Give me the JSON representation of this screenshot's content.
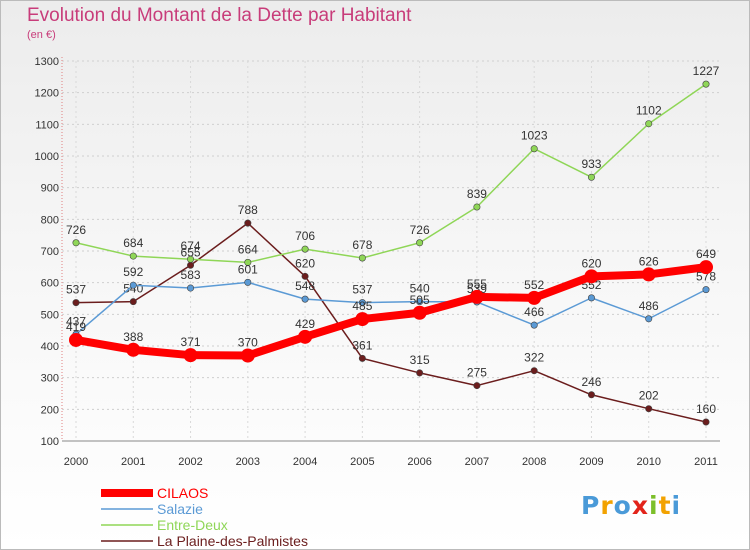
{
  "chart_data": {
    "type": "line",
    "title": "Evolution du Montant de la Dette par Habitant",
    "subtitle": "(en €)",
    "xlabel": "",
    "ylabel": "",
    "ylim": [
      100,
      1300
    ],
    "yticks": [
      100,
      200,
      300,
      400,
      500,
      600,
      700,
      800,
      900,
      1000,
      1100,
      1200,
      1300
    ],
    "grid": true,
    "legend_position": "bottom-left",
    "categories": [
      "2000",
      "2001",
      "2002",
      "2003",
      "2004",
      "2005",
      "2006",
      "2007",
      "2008",
      "2009",
      "2010",
      "2011"
    ],
    "series": [
      {
        "name": "CILAOS",
        "color": "#ff0000",
        "values": [
          419,
          388,
          371,
          370,
          429,
          485,
          505,
          555,
          552,
          620,
          626,
          649
        ]
      },
      {
        "name": "Salazie",
        "color": "#5b9ad5",
        "values": [
          437,
          592,
          583,
          601,
          548,
          537,
          540,
          539,
          466,
          552,
          486,
          578
        ]
      },
      {
        "name": "Entre-Deux",
        "color": "#8fd657",
        "values": [
          726,
          684,
          674,
          664,
          706,
          678,
          726,
          839,
          1023,
          933,
          1102,
          1227
        ]
      },
      {
        "name": "La Plaine-des-Palmistes",
        "color": "#6b1d1d",
        "values": [
          537,
          540,
          655,
          788,
          620,
          361,
          315,
          275,
          322,
          246,
          202,
          160
        ]
      }
    ]
  },
  "logo": {
    "text": "Proxiti",
    "colors": [
      "#4a9ad8",
      "#f2a200",
      "#4a9ad8",
      "#e2231a",
      "#7cbf2a",
      "#f2a200",
      "#4a9ad8"
    ]
  }
}
